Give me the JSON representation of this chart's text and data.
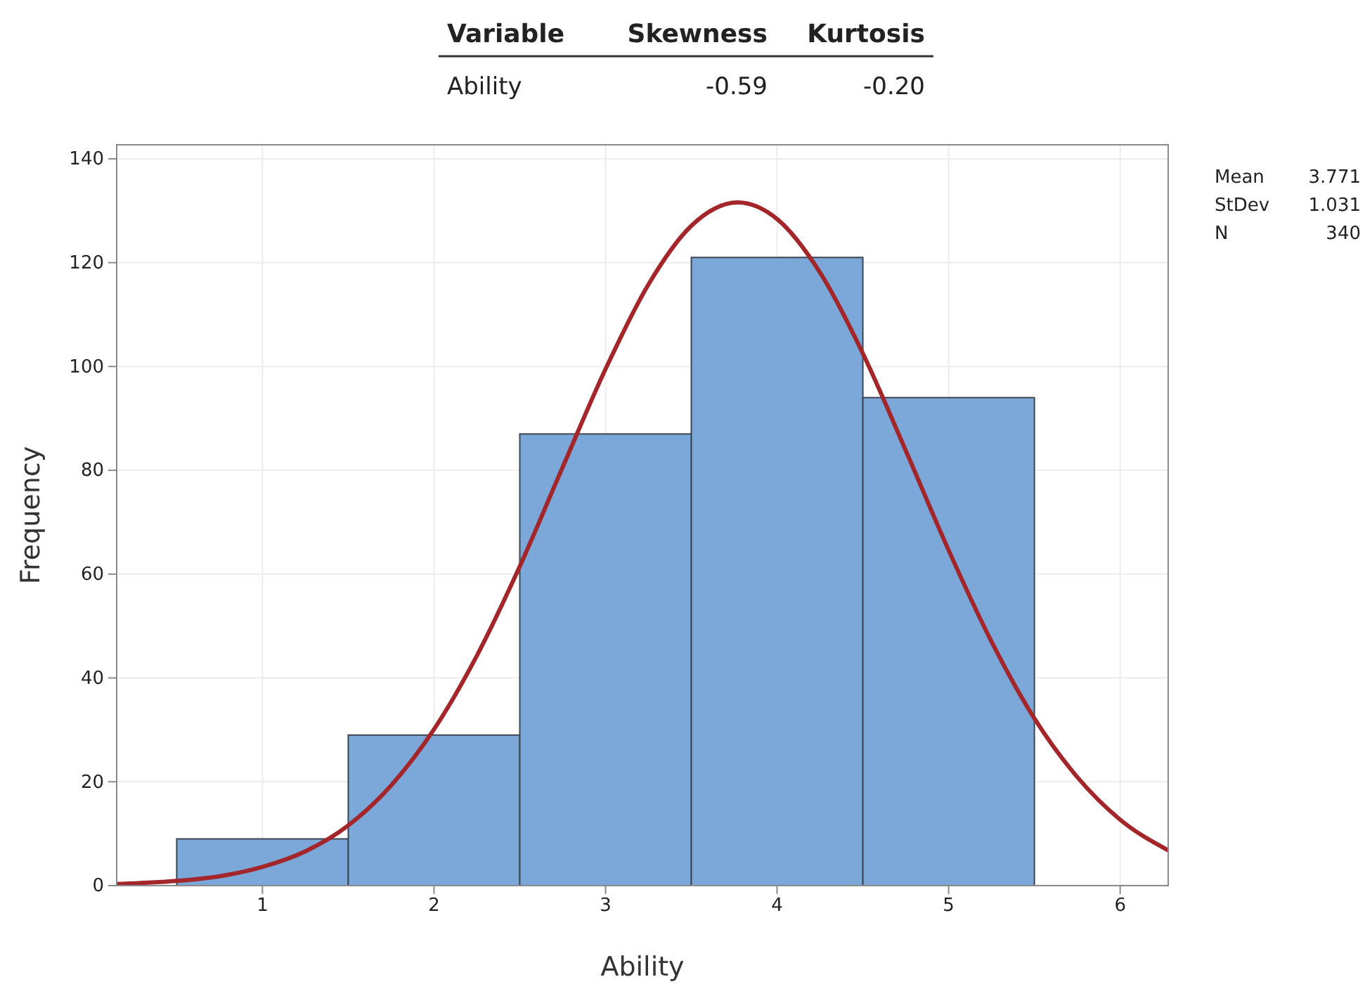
{
  "chart_data": {
    "type": "histogram",
    "xlabel": "Ability",
    "ylabel": "Frequency",
    "bins": [
      0.5,
      1.5,
      2.5,
      3.5,
      4.5,
      5.5
    ],
    "xlim": [
      0.15,
      6.28
    ],
    "xticks": [
      1,
      2,
      3,
      4,
      5,
      6
    ],
    "ylim": [
      0,
      142.7
    ],
    "yticks": [
      0,
      20,
      40,
      60,
      80,
      100,
      120,
      140
    ],
    "grid": true,
    "series": [
      {
        "color": "#7ba7d9",
        "values": [
          9,
          29,
          87,
          121,
          94
        ]
      },
      {
        "type": "line",
        "color": "#a3262a",
        "marker": "none",
        "x": [
          0.15,
          0.5,
          0.75,
          1,
          1.25,
          1.5,
          1.75,
          2,
          2.25,
          2.5,
          2.75,
          3,
          3.25,
          3.5,
          3.771,
          4,
          4.25,
          4.5,
          4.75,
          5,
          5.25,
          5.5,
          5.75,
          6,
          6.28
        ],
        "values": [
          0.3,
          0.9,
          1.8,
          3.6,
          6.6,
          11.6,
          19.3,
          30.1,
          44.3,
          61.5,
          80.6,
          99.5,
          115.8,
          127.1,
          131.6,
          128.4,
          118.1,
          102.5,
          83.8,
          64.6,
          47,
          32.2,
          20.9,
          12.7,
          6.8
        ]
      }
    ],
    "annotations": [
      "Variable",
      "Skewness",
      "Kurtosis",
      "Ability",
      "-0.59",
      "-0.20",
      "Mean",
      "3.771",
      "StDev",
      "1.031",
      "N",
      "340"
    ]
  }
}
